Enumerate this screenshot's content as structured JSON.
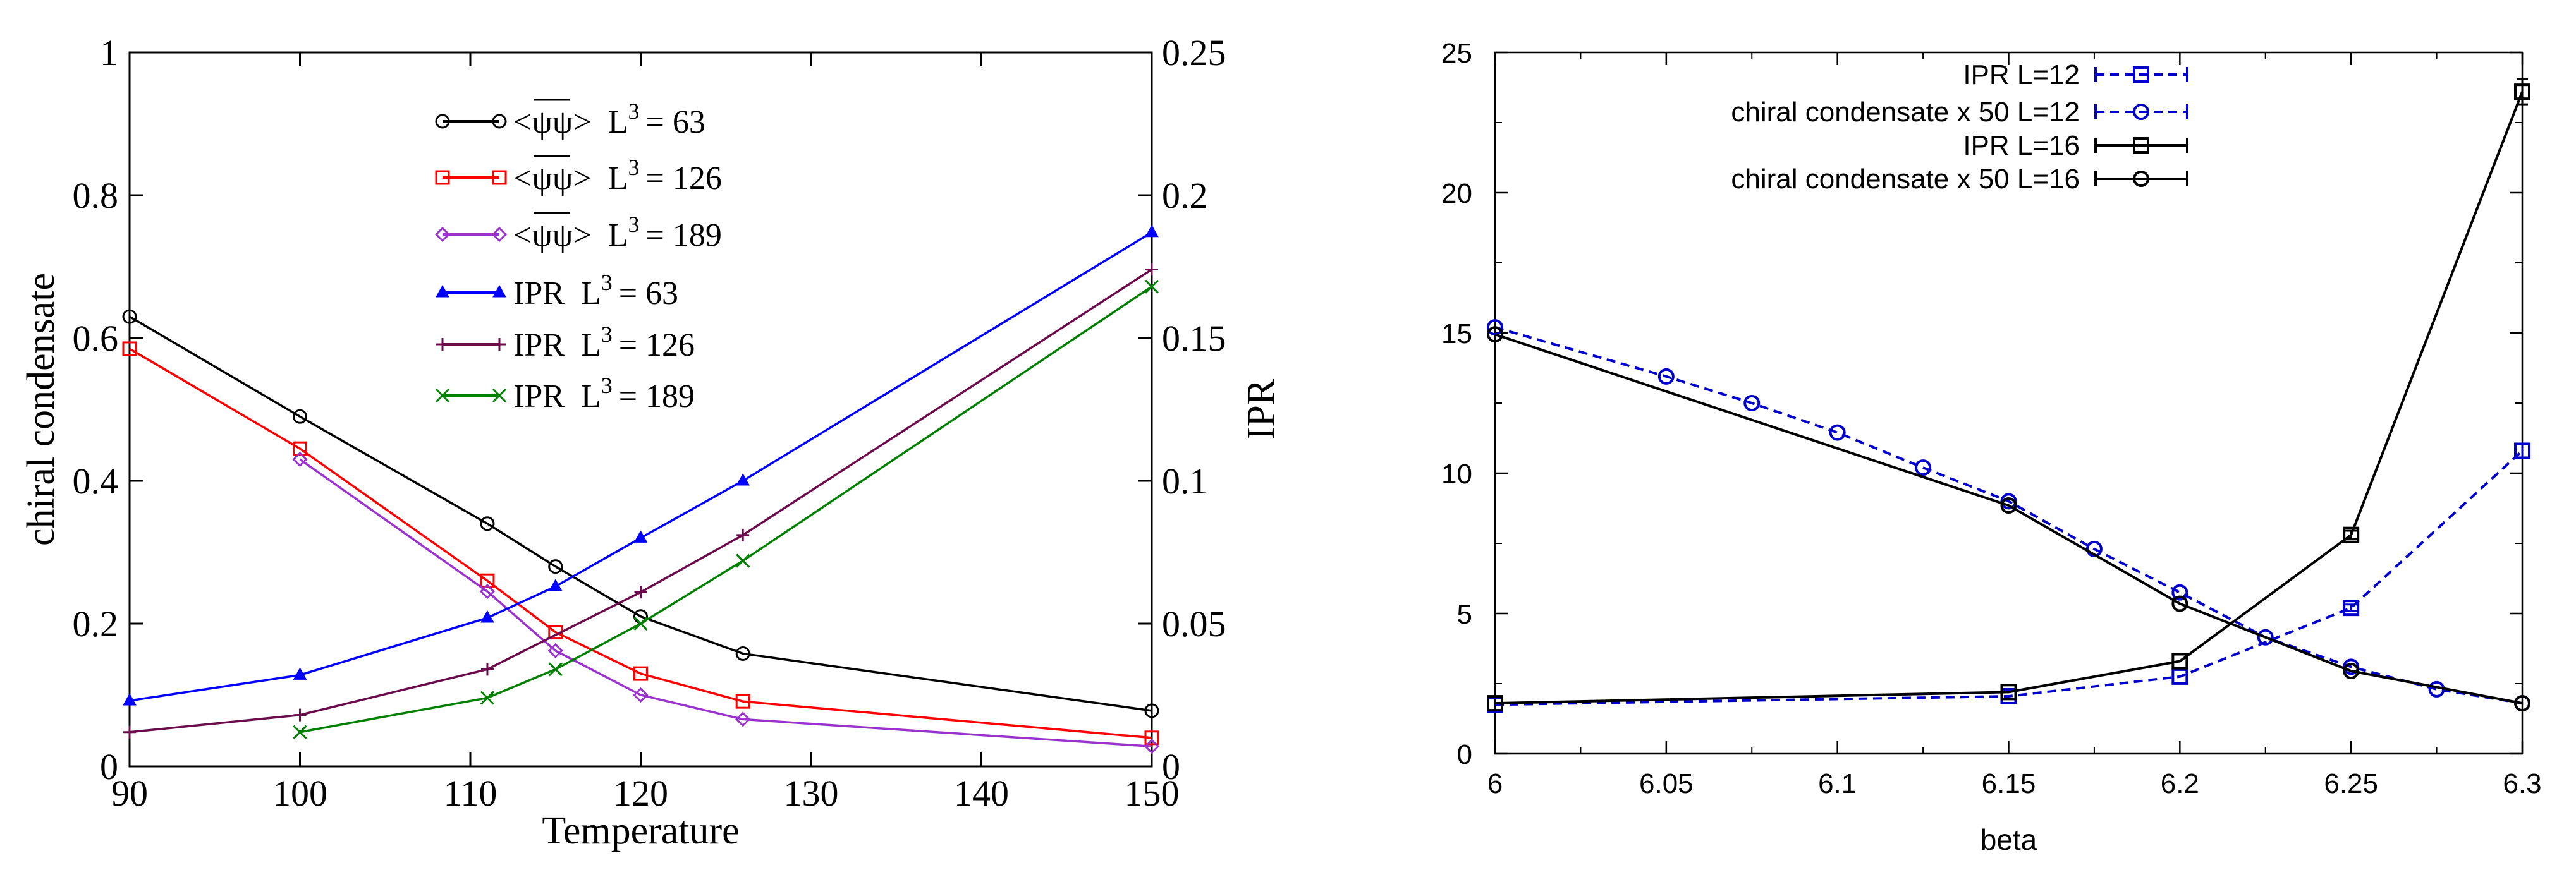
{
  "chart_data": [
    {
      "type": "line",
      "xlabel": "Temperature",
      "ylabel": "chiral condensate",
      "y2label": "IPR",
      "xlim": [
        90,
        150
      ],
      "ylim": [
        0,
        1
      ],
      "y2lim": [
        0,
        0.25
      ],
      "xticks": [
        "90",
        "100",
        "110",
        "120",
        "130",
        "140",
        "150"
      ],
      "yticks": [
        "0",
        "0.2",
        "0.4",
        "0.6",
        "0.8",
        "1"
      ],
      "y2ticks": [
        "0",
        "0.05",
        "0.1",
        "0.15",
        "0.2",
        "0.25"
      ],
      "legend_position": "top-center",
      "series": [
        {
          "name": "<ψψ> L3 = 63",
          "legend": {
            "base": "<ψψ>",
            "mid": "L",
            "sup": "3",
            "tail": "= 63",
            "overbar": true
          },
          "axis": "left",
          "color": "#000000",
          "marker": "circle",
          "x": [
            90,
            100,
            111,
            115,
            120,
            126,
            150
          ],
          "y": [
            0.63,
            0.49,
            0.34,
            0.28,
            0.21,
            0.158,
            0.078
          ]
        },
        {
          "name": "<ψψ> L3 = 126",
          "legend": {
            "base": "<ψψ>",
            "mid": "L",
            "sup": "3",
            "tail": "= 126",
            "overbar": true
          },
          "axis": "left",
          "color": "#ff0000",
          "marker": "square",
          "x": [
            90,
            100,
            111,
            115,
            120,
            126,
            150
          ],
          "y": [
            0.585,
            0.445,
            0.26,
            0.188,
            0.13,
            0.091,
            0.04
          ]
        },
        {
          "name": "<ψψ> L3 = 189",
          "legend": {
            "base": "<ψψ>",
            "mid": "L",
            "sup": "3",
            "tail": "= 189",
            "overbar": true
          },
          "axis": "left",
          "color": "#9a32cd",
          "marker": "diamond",
          "x": [
            100,
            111,
            115,
            120,
            126,
            150
          ],
          "y": [
            0.43,
            0.245,
            0.162,
            0.1,
            0.066,
            0.028
          ]
        },
        {
          "name": "IPR L3 = 63",
          "legend": {
            "base": "IPR",
            "mid": "L",
            "sup": "3",
            "tail": "= 63",
            "overbar": false
          },
          "axis": "right",
          "color": "#0000ff",
          "marker": "triangle",
          "x": [
            90,
            100,
            111,
            115,
            120,
            126,
            150
          ],
          "y": [
            0.023,
            0.032,
            0.052,
            0.063,
            0.08,
            0.1,
            0.187
          ]
        },
        {
          "name": "IPR L3 = 126",
          "legend": {
            "base": "IPR",
            "mid": "L",
            "sup": "3",
            "tail": "= 126",
            "overbar": false
          },
          "axis": "right",
          "color": "#6b0b4b",
          "marker": "plus",
          "x": [
            90,
            100,
            111,
            120,
            126,
            150
          ],
          "y": [
            0.012,
            0.018,
            0.034,
            0.061,
            0.081,
            0.174
          ]
        },
        {
          "name": "IPR L3 = 189",
          "legend": {
            "base": "IPR",
            "mid": "L",
            "sup": "3",
            "tail": "= 189",
            "overbar": false
          },
          "axis": "right",
          "color": "#008000",
          "marker": "cross",
          "x": [
            100,
            111,
            115,
            120,
            126,
            150
          ],
          "y": [
            0.012,
            0.024,
            0.034,
            0.05,
            0.072,
            0.168
          ]
        }
      ]
    },
    {
      "type": "line",
      "xlabel": "beta",
      "ylabel": "",
      "xlim": [
        6,
        6.3
      ],
      "ylim": [
        0,
        25
      ],
      "xticks": [
        "6",
        "6.05",
        "6.1",
        "6.15",
        "6.2",
        "6.25",
        "6.3"
      ],
      "yticks": [
        "0",
        "5",
        "10",
        "15",
        "20",
        "25"
      ],
      "legend_position": "top-center",
      "series": [
        {
          "name": "IPR  L=12",
          "color": "#0000cc",
          "dashed": true,
          "marker": "square",
          "x": [
            6,
            6.15,
            6.2,
            6.25,
            6.3
          ],
          "y": [
            1.75,
            2.05,
            2.75,
            5.2,
            10.8
          ],
          "yerr": [
            0,
            0,
            0,
            0.12,
            0.25
          ]
        },
        {
          "name": "chiral condensate x 50  L=12",
          "color": "#0000cc",
          "dashed": true,
          "marker": "circle",
          "x": [
            6,
            6.05,
            6.075,
            6.1,
            6.125,
            6.15,
            6.175,
            6.2,
            6.225,
            6.25,
            6.275,
            6.3
          ],
          "y": [
            15.2,
            13.45,
            12.5,
            11.45,
            10.2,
            9.0,
            7.3,
            5.75,
            4.15,
            3.1,
            2.3,
            1.8
          ]
        },
        {
          "name": "IPR  L=16",
          "color": "#000000",
          "dashed": false,
          "marker": "square",
          "x": [
            6,
            6.15,
            6.2,
            6.25,
            6.3
          ],
          "y": [
            1.8,
            2.2,
            3.3,
            7.8,
            23.6
          ],
          "yerr": [
            0,
            0,
            0,
            0.15,
            0.45
          ]
        },
        {
          "name": "chiral condensate x 50  L=16",
          "color": "#000000",
          "dashed": false,
          "marker": "circle",
          "x": [
            6,
            6.15,
            6.2,
            6.25,
            6.3
          ],
          "y": [
            14.95,
            8.85,
            5.35,
            2.95,
            1.8
          ]
        }
      ]
    }
  ]
}
